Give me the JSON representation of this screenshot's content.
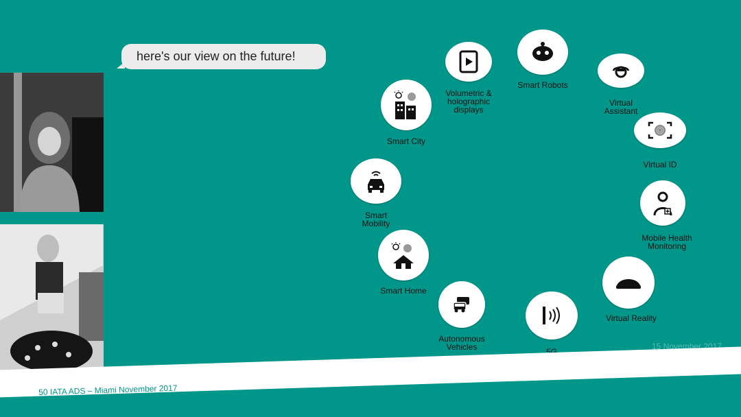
{
  "speech_bubble": {
    "text": "here's our view on the future!"
  },
  "footer": {
    "text": "50 IATA ADS – Miami November 2017"
  },
  "faint_date": {
    "text": "15 November 2017"
  },
  "items": [
    {
      "label": "Volumetric &\nholographic\ndisplays",
      "icon": "tablet-play-icon"
    },
    {
      "label": "Smart Robots",
      "icon": "robot-icon"
    },
    {
      "label": "Virtual\nAssistant",
      "icon": "assistant-icon"
    },
    {
      "label": "Virtual ID",
      "icon": "fingerprint-icon"
    },
    {
      "label": "Mobile Health\nMonitoring",
      "icon": "doctor-icon"
    },
    {
      "label": "Virtual Reality",
      "icon": "vr-headset-icon"
    },
    {
      "label": "5G",
      "icon": "signal-icon"
    },
    {
      "label": "Autonomous\nVehicles",
      "icon": "vehicles-icon"
    },
    {
      "label": "Smart Home",
      "icon": "smart-home-icon"
    },
    {
      "label": "Smart\nMobility",
      "icon": "connected-car-icon"
    },
    {
      "label": "Smart City",
      "icon": "smart-city-icon"
    }
  ]
}
